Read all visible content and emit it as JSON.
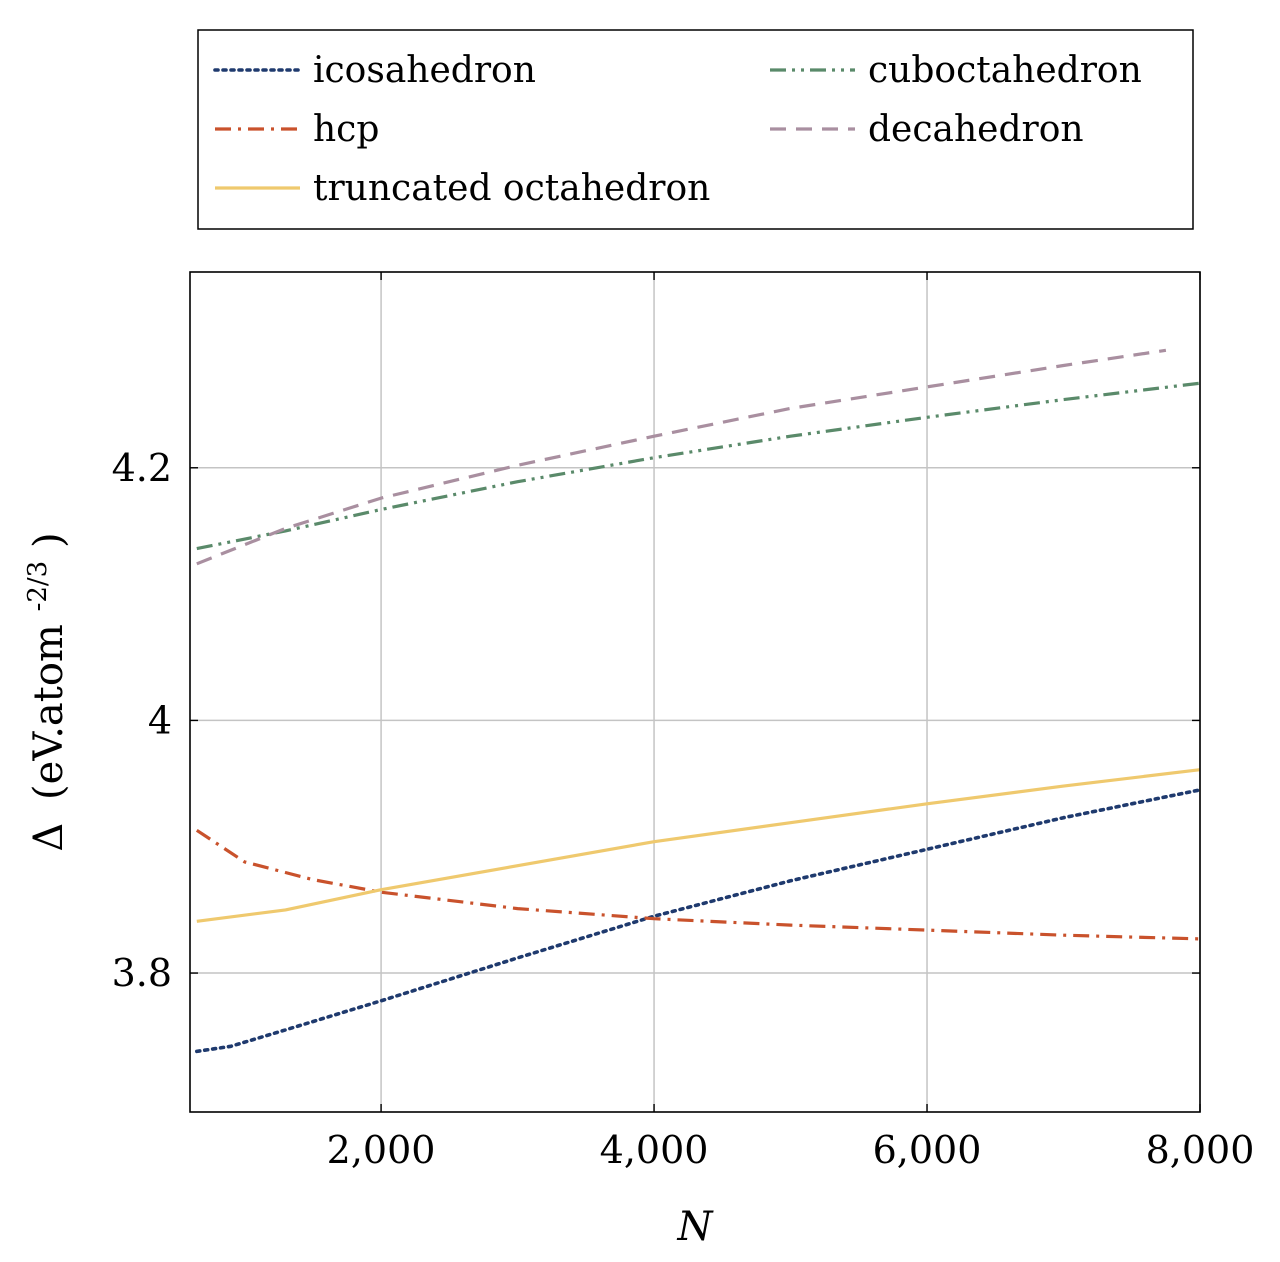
{
  "chart_data": {
    "type": "line",
    "title": "",
    "xlabel": "N",
    "ylabel": "Δ (eV.atom-2/3)",
    "ylabel_parts": {
      "symbol": "Δ",
      "unit_open": "(eV.atom",
      "unit_sup": "-2/3",
      "unit_close": ")"
    },
    "xlim": [
      600,
      8000
    ],
    "ylim": [
      3.69,
      4.355
    ],
    "xticks": [
      2000,
      4000,
      6000,
      8000
    ],
    "xtick_labels": [
      "2,000",
      "4,000",
      "6,000",
      "8,000"
    ],
    "yticks": [
      3.8,
      4.0,
      4.2
    ],
    "ytick_labels": [
      "3.8",
      "4",
      "4.2"
    ],
    "grid": true,
    "legend_position": "top (outside, above plot)",
    "series": [
      {
        "name": "icosahedron",
        "color": "#1f3a6e",
        "style": "dotted",
        "x": [
          650,
          900,
          1300,
          2000,
          3000,
          4000,
          5000,
          6000,
          7000,
          8000
        ],
        "y": [
          3.738,
          3.742,
          3.755,
          3.778,
          3.812,
          3.845,
          3.873,
          3.898,
          3.923,
          3.945
        ]
      },
      {
        "name": "cuboctahedron",
        "color": "#5a8a6a",
        "style": "dashdotdot",
        "x": [
          650,
          1300,
          2000,
          3000,
          4000,
          5000,
          6000,
          7000,
          8000
        ],
        "y": [
          4.136,
          4.15,
          4.167,
          4.189,
          4.208,
          4.225,
          4.24,
          4.254,
          4.267
        ]
      },
      {
        "name": "hcp",
        "color": "#c9522c",
        "style": "dashdot",
        "x": [
          650,
          1000,
          1500,
          2000,
          3000,
          4000,
          5000,
          6000,
          7000,
          8000
        ],
        "y": [
          3.913,
          3.888,
          3.874,
          3.864,
          3.851,
          3.843,
          3.838,
          3.834,
          3.83,
          3.827
        ]
      },
      {
        "name": "decahedron",
        "color": "#a98fa0",
        "style": "dashed",
        "x": [
          650,
          1300,
          2000,
          3000,
          4000,
          5000,
          6000,
          7000,
          7750
        ],
        "y": [
          4.124,
          4.152,
          4.176,
          4.202,
          4.225,
          4.247,
          4.264,
          4.281,
          4.293
        ]
      },
      {
        "name": "truncated octahedron",
        "color": "#efc96e",
        "style": "solid",
        "x": [
          650,
          1300,
          2000,
          3000,
          4000,
          5000,
          6000,
          7000,
          8000
        ],
        "y": [
          3.841,
          3.85,
          3.866,
          3.885,
          3.904,
          3.919,
          3.934,
          3.948,
          3.961
        ]
      }
    ],
    "legend_order": [
      "icosahedron",
      "cuboctahedron",
      "hcp",
      "decahedron",
      "truncated octahedron"
    ]
  }
}
